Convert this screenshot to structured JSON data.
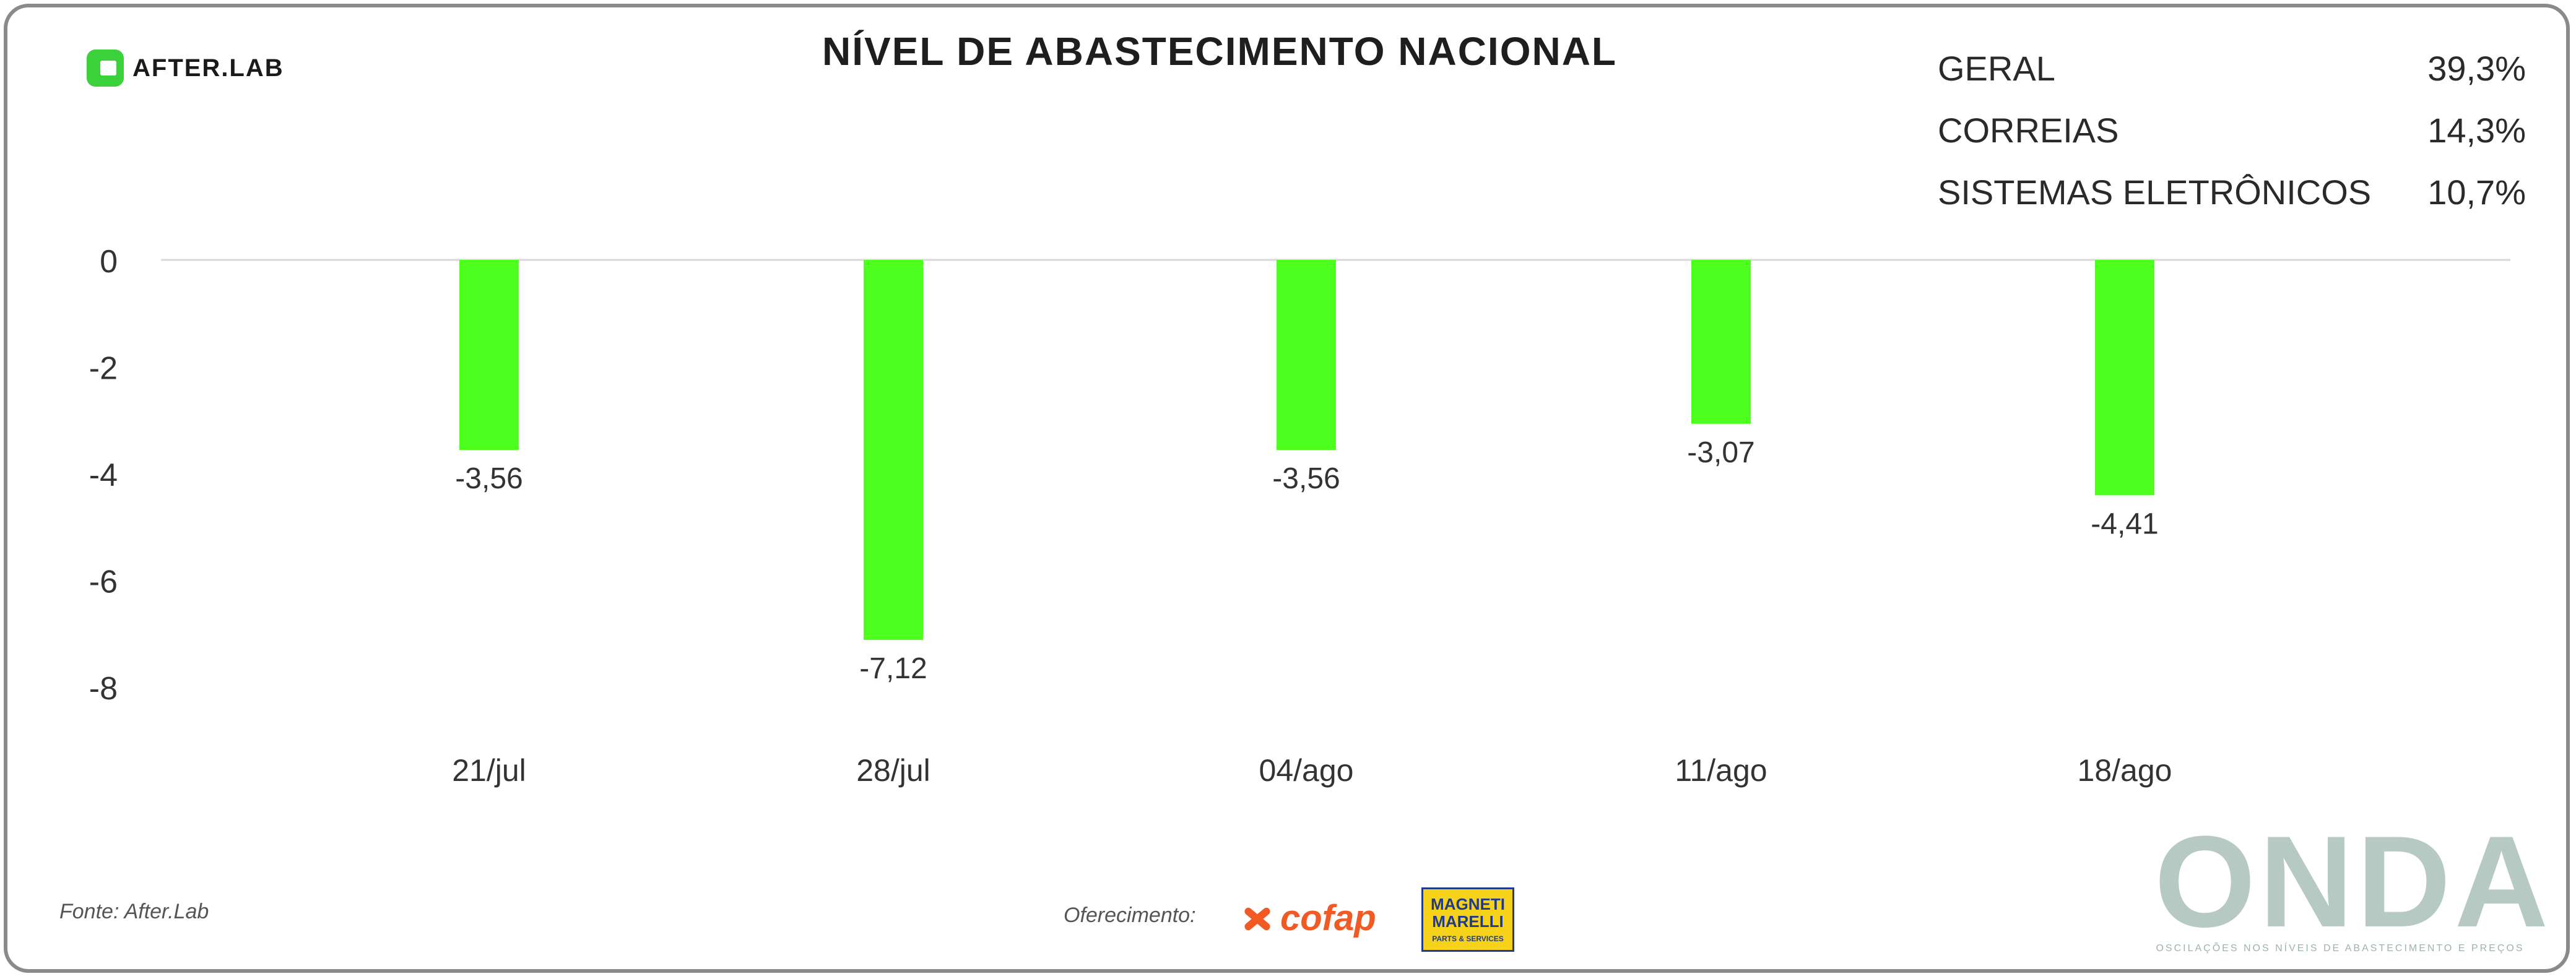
{
  "brand": {
    "afterlab": "AFTER.LAB"
  },
  "title": "NÍVEL DE ABASTECIMENTO NACIONAL",
  "summary": [
    {
      "label": "GERAL",
      "value": "39,3%"
    },
    {
      "label": "CORREIAS",
      "value": "14,3%"
    },
    {
      "label": "SISTEMAS ELETRÔNICOS",
      "value": "10,7%"
    }
  ],
  "chart_data": {
    "type": "bar",
    "categories": [
      "21/jul",
      "28/jul",
      "04/ago",
      "11/ago",
      "18/ago"
    ],
    "values": [
      -3.56,
      -7.12,
      -3.56,
      -3.07,
      -4.41
    ],
    "value_labels": [
      "-3,56",
      "-7,12",
      "-3,56",
      "-3,07",
      "-4,41"
    ],
    "y_ticks": [
      0,
      -2,
      -4,
      -6,
      -8
    ],
    "ylim": [
      -8,
      0
    ],
    "bar_color": "#4dff1c",
    "grid": false
  },
  "footer": {
    "source": "Fonte: After.Lab",
    "offer": "Oferecimento:",
    "cofap": "cofap",
    "marelli": "MAGNETI MARELLI",
    "marelli_sub": "PARTS & SERVICES",
    "onda": "ONDA",
    "onda_sub": "OSCILAÇÕES NOS NÍVEIS DE ABASTECIMENTO E PREÇOS"
  }
}
